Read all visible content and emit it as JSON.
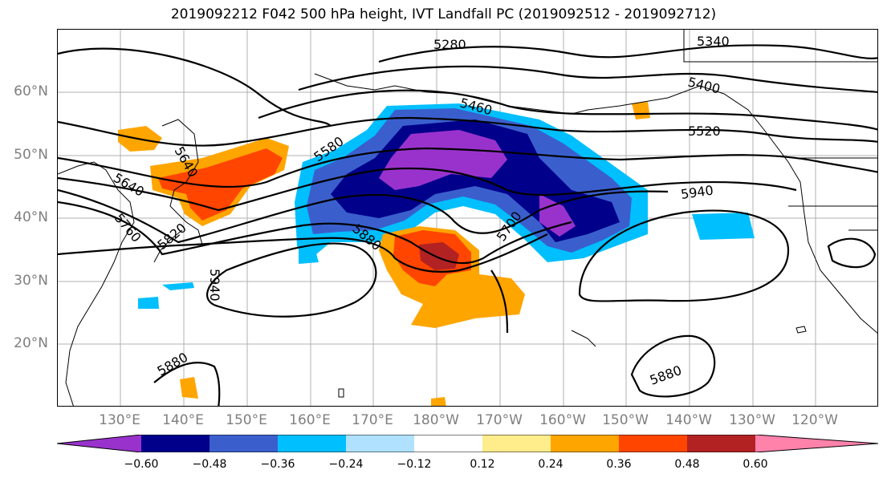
{
  "title": "2019092212 F042 500 hPa height, IVT Landfall PC (2019092512 - 2019092712)",
  "lat_labels": [
    "60°N",
    "50°N",
    "40°N",
    "30°N",
    "20°N"
  ],
  "lon_labels": [
    "130°E",
    "140°E",
    "150°E",
    "160°E",
    "170°E",
    "180°W",
    "170°W",
    "160°W",
    "150°W",
    "140°W",
    "130°W",
    "120°W"
  ],
  "contour_labels": [
    "5280",
    "5340",
    "5400",
    "5460",
    "5520",
    "5580",
    "5640",
    "5700",
    "5760",
    "5820",
    "5880",
    "5940",
    "5880",
    "5880",
    "5940",
    "5640"
  ],
  "colorbar": {
    "ticks": [
      "−0.60",
      "−0.48",
      "−0.36",
      "−0.24",
      "−0.12",
      "0.12",
      "0.24",
      "0.36",
      "0.48",
      "0.60"
    ],
    "colors": [
      "#9932cc",
      "#00008b",
      "#3a5fcd",
      "#00bfff",
      "#b0e2ff",
      "#ffffff",
      "#ffec8b",
      "#ffa500",
      "#ff4500",
      "#b22222",
      "#ff82ab"
    ]
  }
}
